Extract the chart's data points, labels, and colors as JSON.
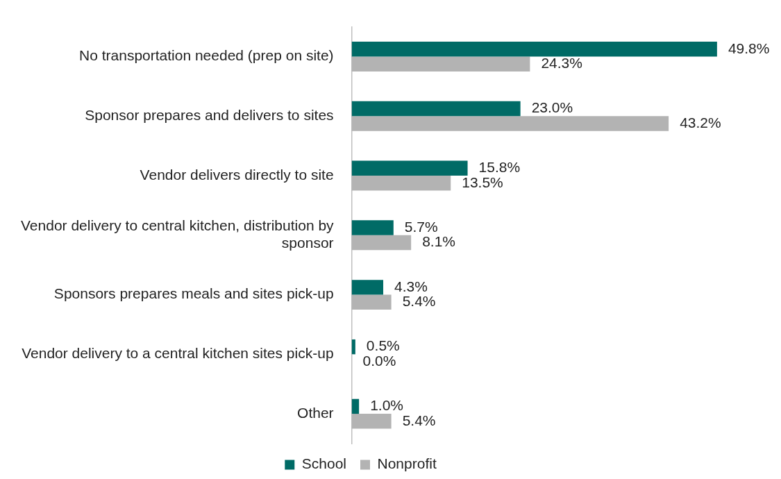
{
  "chart_data": {
    "type": "bar",
    "orientation": "horizontal",
    "categories": [
      "No transportation needed (prep on site)",
      "Sponsor prepares and delivers to sites",
      "Vendor delivers directly to site",
      "Vendor delivery to central kitchen, distribution by sponsor",
      "Sponsors prepares meals and sites pick-up",
      "Vendor delivery to a central kitchen sites pick-up",
      "Other"
    ],
    "series": [
      {
        "name": "School",
        "color": "#006b66",
        "values": [
          49.8,
          23.0,
          15.8,
          5.7,
          4.3,
          0.5,
          1.0
        ],
        "value_labels": [
          "49.8%",
          "23.0%",
          "15.8%",
          "5.7%",
          "4.3%",
          "0.5%",
          "1.0%"
        ]
      },
      {
        "name": "Nonprofit",
        "color": "#b3b3b3",
        "values": [
          24.3,
          43.2,
          13.5,
          8.1,
          5.4,
          0.0,
          5.4
        ],
        "value_labels": [
          "24.3%",
          "43.2%",
          "13.5%",
          "8.1%",
          "5.4%",
          "0.0%",
          "5.4%"
        ]
      }
    ],
    "legend": "bottom",
    "grid": false,
    "tick_labels": "y"
  }
}
